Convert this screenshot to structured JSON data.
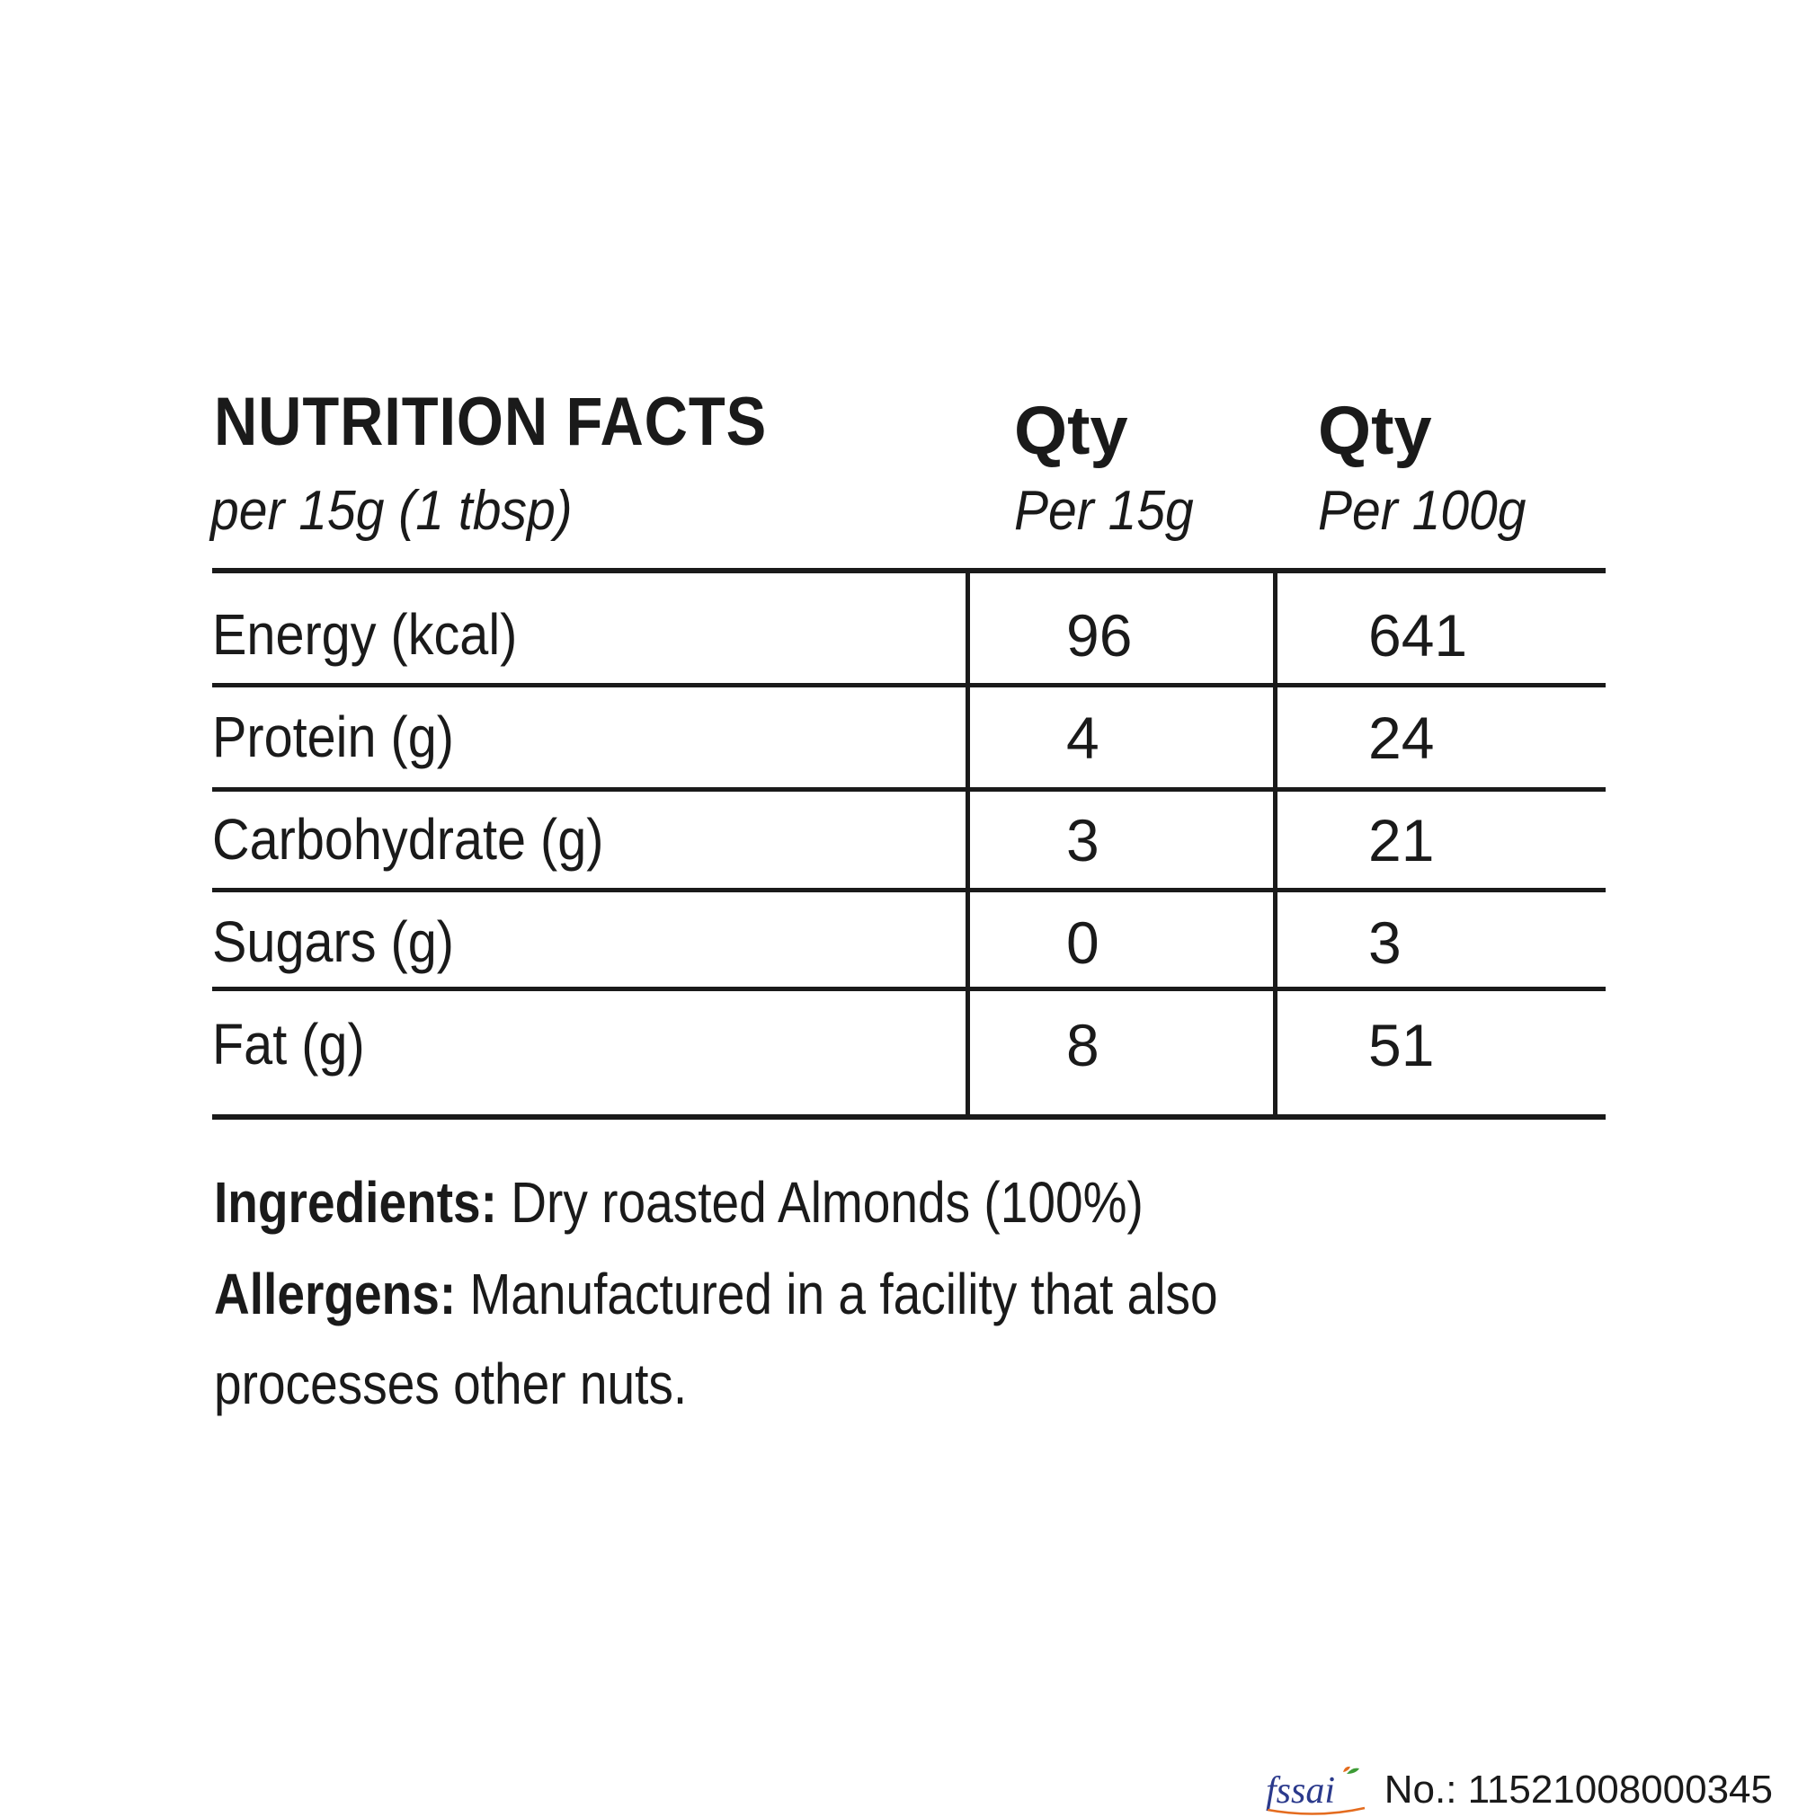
{
  "header": {
    "title": "NUTRITION FACTS",
    "serving": "per 15g (1 tbsp)",
    "col1_title": "Qty",
    "col1_sub": "Per 15g",
    "col2_title": "Qty",
    "col2_sub": "Per 100g"
  },
  "rows": [
    {
      "label": "Energy (kcal)",
      "per15": "96",
      "per100": "641"
    },
    {
      "label": "Protein (g)",
      "per15": "4",
      "per100": "24"
    },
    {
      "label": "Carbohydrate (g)",
      "per15": "3",
      "per100": "21"
    },
    {
      "label": "Sugars (g)",
      "per15": "0",
      "per100": "3"
    },
    {
      "label": "Fat (g)",
      "per15": "8",
      "per100": "51"
    }
  ],
  "ingredients": {
    "heading": "Ingredients:",
    "text": "Dry roasted Almonds (100%)"
  },
  "allergens": {
    "heading": "Allergens:",
    "text_line1": "Manufactured in a facility that also",
    "text_line2": "processes other nuts."
  },
  "footer": {
    "logo_text": "fssai",
    "license": "No.: 11521008000345"
  },
  "colors": {
    "text": "#1a1a1a",
    "logo_blue": "#2b3a8c",
    "logo_orange": "#e46c1f",
    "logo_green": "#3d9b35"
  }
}
